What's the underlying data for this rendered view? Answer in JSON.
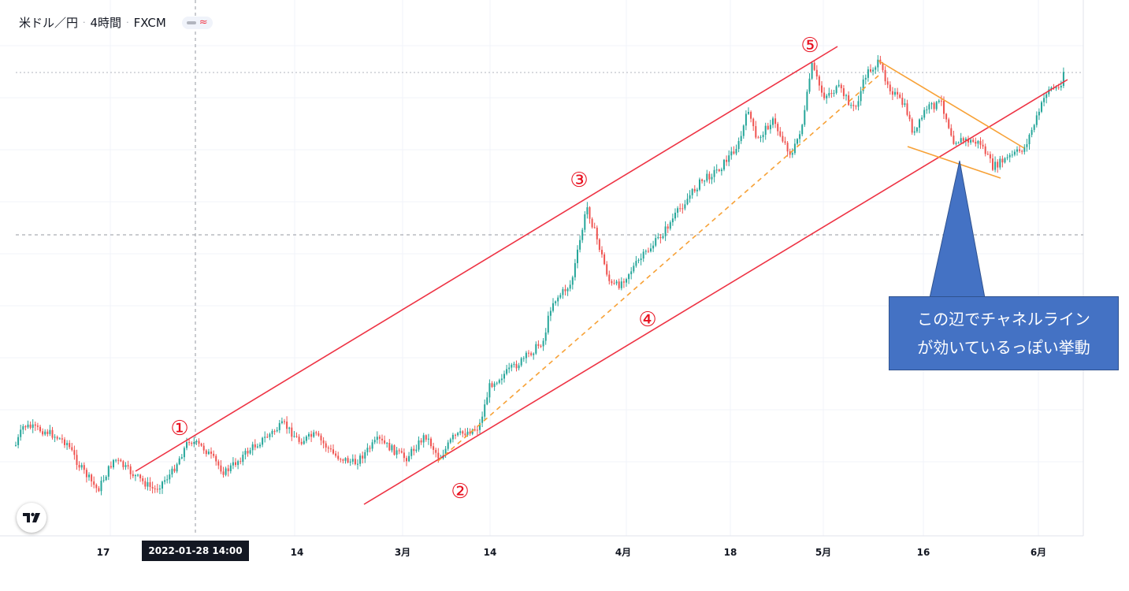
{
  "header": {
    "symbol": "米ドル／円",
    "interval": "4時間",
    "source": "FXCM"
  },
  "crosshair": {
    "time_label": "2022-01-28   14:00"
  },
  "callout": {
    "line1": "この辺でチャネルライン",
    "line2": "が効いているっぽい挙動"
  },
  "annotations": {
    "n1": "①",
    "n2": "②",
    "n3": "③",
    "n4": "④",
    "n5": "⑤"
  },
  "colors": {
    "up": "#26a69a",
    "down": "#ef5350",
    "channel": "#ee3344",
    "orange": "#f7a136",
    "label": "#e8101f",
    "callout": "#4472c4",
    "grid": "#f0f3fa",
    "axis_text": "#131722"
  },
  "chart_data": {
    "type": "candlestick",
    "series_name": "",
    "x_tick_labels": [
      "17",
      "14",
      "3月",
      "14",
      "4月",
      "18",
      "5月",
      "16",
      "6月"
    ],
    "key_points": [
      {
        "time": "2022-01-10",
        "close": 115.4
      },
      {
        "time": "2022-01-24",
        "close": 113.5
      },
      {
        "time": "2022-01-28",
        "close": 115.3
      },
      {
        "time": "2022-02-24",
        "close": 114.7
      },
      {
        "time": "2022-03-07",
        "close": 115.3
      },
      {
        "time": "2022-03-28",
        "close": 125.0
      },
      {
        "time": "2022-04-20",
        "close": 129.4
      },
      {
        "time": "2022-04-28",
        "close": 131.2
      },
      {
        "time": "2022-05-09",
        "close": 131.0
      },
      {
        "time": "2022-05-12",
        "close": 128.5
      },
      {
        "time": "2022-05-24",
        "close": 126.9
      },
      {
        "time": "2022-06-06",
        "close": 131.5
      }
    ],
    "lines": [
      {
        "label": "③",
        "kind": "upper channel",
        "color": "red"
      },
      {
        "label": "④",
        "kind": "lower channel",
        "color": "red"
      },
      {
        "label": "",
        "kind": "mid trend (dashed)",
        "color": "orange"
      },
      {
        "label": "",
        "kind": "descending wedge top",
        "color": "orange"
      },
      {
        "label": "",
        "kind": "descending wedge bottom",
        "color": "orange"
      }
    ],
    "grid": true,
    "legend": "none"
  }
}
